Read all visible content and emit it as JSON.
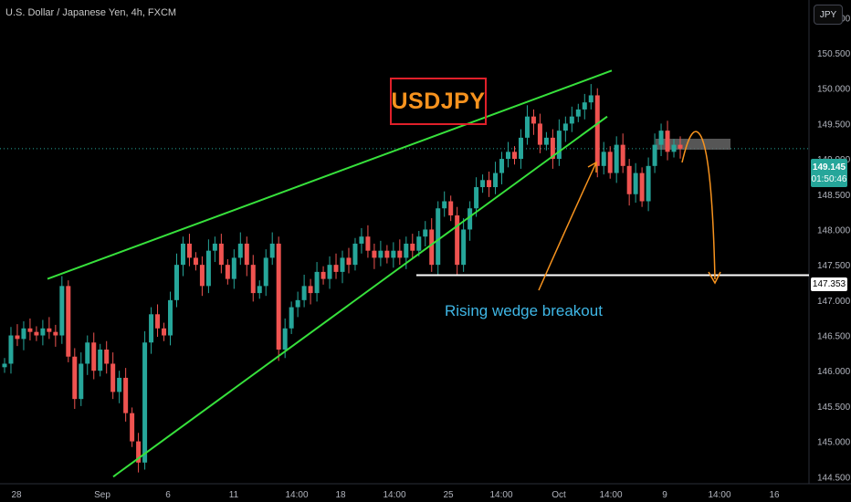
{
  "header": {
    "symbol_text": "U.S. Dollar / Japanese Yen, 4h, FXCM",
    "currency_button": "JPY"
  },
  "annotations": {
    "title": "USDJPY",
    "breakout_label": "Rising wedge breakout"
  },
  "price_tag": {
    "price": "149.145",
    "countdown": "01:50:46"
  },
  "level_tag": {
    "price": "147.353"
  },
  "colors": {
    "up": "#26a69a",
    "down": "#ef5350",
    "wedge": "#37e13c",
    "support": "#ffffff",
    "arrow": "#f7931e",
    "title_border": "#e0202a",
    "title_text": "#f7931e",
    "annotation_text": "#3fb7e6"
  },
  "chart_data": {
    "type": "candlestick",
    "x_axis_labels": [
      "28",
      "Sep",
      "6",
      "11",
      "14:00",
      "18",
      "14:00",
      "25",
      "14:00",
      "Oct",
      "14:00",
      "9",
      "14:00",
      "16"
    ],
    "y_axis_labels": [
      "151.000",
      "150.500",
      "150.000",
      "149.500",
      "149.000",
      "148.500",
      "148.000",
      "147.500",
      "147.000",
      "146.500",
      "146.000",
      "145.500",
      "145.000",
      "144.500"
    ],
    "ylim": [
      144.4,
      151.25
    ],
    "last_price": 149.145,
    "support_level": 147.353,
    "closes": [
      146.1,
      146.5,
      146.45,
      146.6,
      146.55,
      146.5,
      146.6,
      146.55,
      146.5,
      147.2,
      146.2,
      145.6,
      146.1,
      146.4,
      146.0,
      146.3,
      146.1,
      145.7,
      145.9,
      145.4,
      145.0,
      144.7,
      146.4,
      146.8,
      146.6,
      146.5,
      147.0,
      147.5,
      147.8,
      147.6,
      147.5,
      147.2,
      147.7,
      147.8,
      147.5,
      147.3,
      147.6,
      147.8,
      147.5,
      147.1,
      147.2,
      147.6,
      147.8,
      146.3,
      146.6,
      146.9,
      147.0,
      147.2,
      147.1,
      147.4,
      147.3,
      147.5,
      147.4,
      147.6,
      147.5,
      147.8,
      147.9,
      147.7,
      147.6,
      147.7,
      147.6,
      147.7,
      147.6,
      147.8,
      147.7,
      147.9,
      148.0,
      147.5,
      148.3,
      148.4,
      148.2,
      147.5,
      148.0,
      148.3,
      148.6,
      148.7,
      148.6,
      148.8,
      149.0,
      149.1,
      149.0,
      149.3,
      149.6,
      149.5,
      149.2,
      149.3,
      149.0,
      149.4,
      149.5,
      149.6,
      149.7,
      149.8,
      149.9,
      148.9,
      149.1,
      148.8,
      149.2,
      148.9,
      148.5,
      148.8,
      148.4,
      148.9,
      149.2,
      149.4,
      149.1,
      149.2,
      149.145
    ],
    "wedge_upper": [
      [
        0.0,
        147.3
      ],
      [
        100.0,
        150.25
      ]
    ],
    "wedge_lower": [
      [
        21.0,
        144.5
      ],
      [
        100.0,
        149.6
      ]
    ],
    "projection_target": 147.353
  }
}
